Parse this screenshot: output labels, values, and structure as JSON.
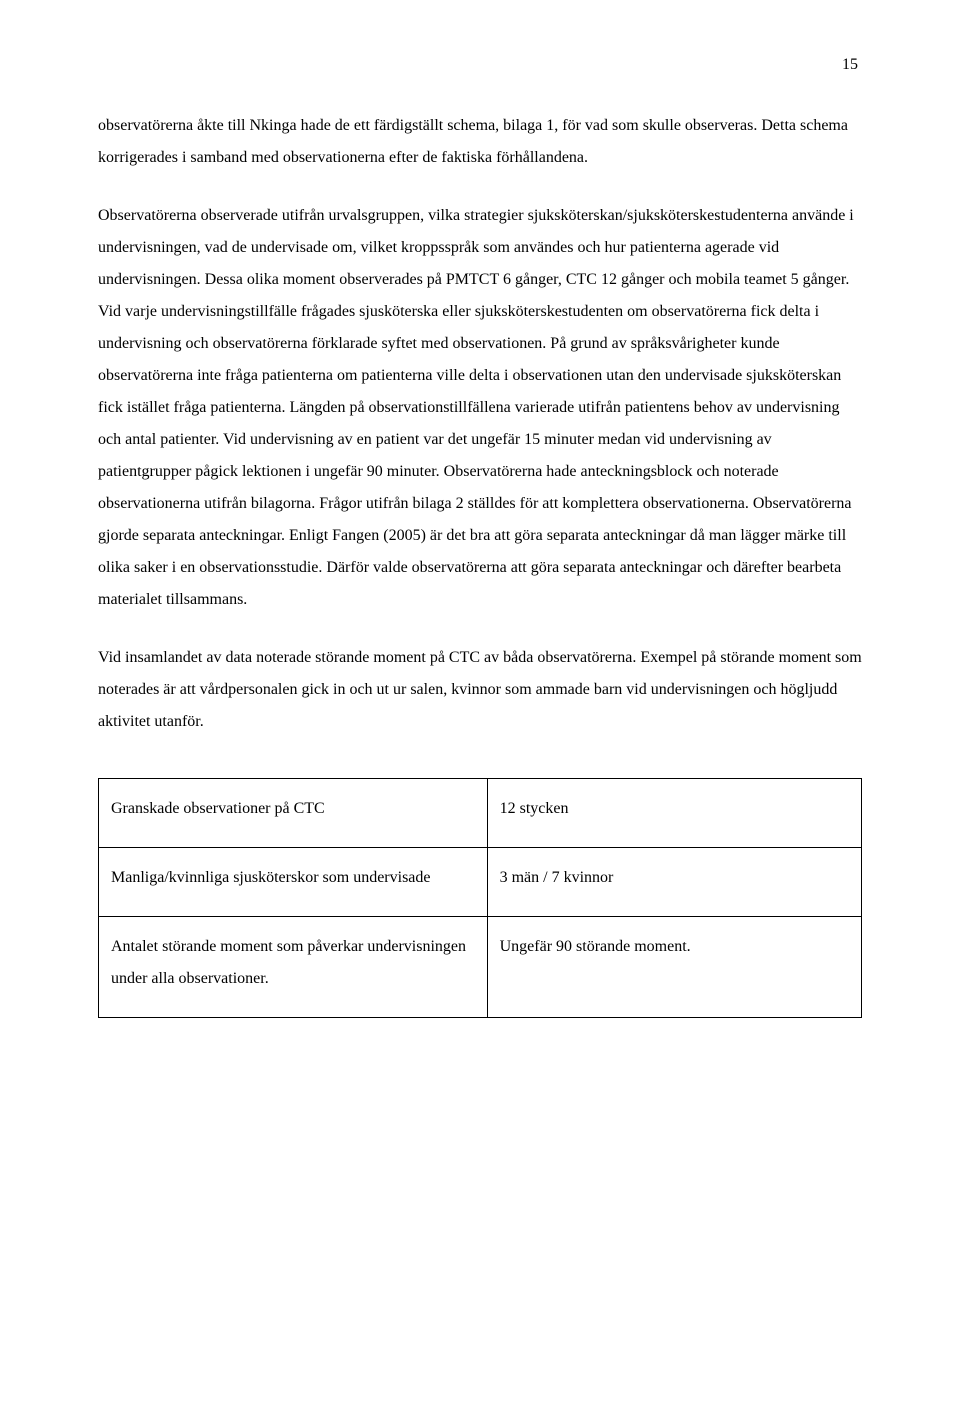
{
  "page_number": "15",
  "para1": "observatörerna åkte till Nkinga hade de ett färdigställt schema, bilaga 1, för vad som skulle observeras. Detta schema korrigerades i samband med observationerna efter de faktiska förhållandena.",
  "para2": "Observatörerna observerade utifrån urvalsgruppen, vilka strategier sjuksköterskan/sjuksköterskestudenterna använde i undervisningen, vad de undervisade om, vilket kroppsspråk som användes och hur patienterna agerade vid undervisningen. Dessa olika moment observerades på PMTCT 6 gånger, CTC 12 gånger och mobila teamet 5 gånger. Vid varje undervisningstillfälle frågades sjusköterska eller sjuksköterskestudenten om observatörerna fick delta i undervisning och observatörerna förklarade syftet med observationen. På grund av språksvårigheter kunde observatörerna inte fråga patienterna om patienterna ville delta i observationen utan den undervisade sjuksköterskan fick istället fråga patienterna. Längden på observationstillfällena varierade utifrån patientens behov av undervisning och antal patienter. Vid undervisning av en patient var det ungefär 15 minuter medan vid undervisning av patientgrupper pågick lektionen i ungefär 90 minuter. Observatörerna hade anteckningsblock och noterade observationerna utifrån bilagorna. Frågor utifrån bilaga 2 ställdes för att komplettera observationerna. Observatörerna gjorde separata anteckningar. Enligt Fangen (2005) är det bra att göra separata anteckningar då man lägger märke till olika saker i en observationsstudie. Därför valde observatörerna att göra separata anteckningar och därefter bearbeta materialet tillsammans.",
  "para3": "Vid insamlandet av data noterade störande moment på CTC av båda observatörerna. Exempel på störande moment som noterades är att vårdpersonalen gick in och ut ur salen, kvinnor som ammade barn vid undervisningen och högljudd aktivitet utanför.",
  "table": {
    "rows": [
      {
        "left": "Granskade observationer på CTC",
        "right": "12 stycken"
      },
      {
        "left": "Manliga/kvinnliga sjusköterskor som undervisade",
        "right": "3 män / 7 kvinnor"
      },
      {
        "left": "Antalet störande moment som påverkar undervisningen under alla observationer.",
        "right": "Ungefär 90 störande moment."
      }
    ]
  }
}
